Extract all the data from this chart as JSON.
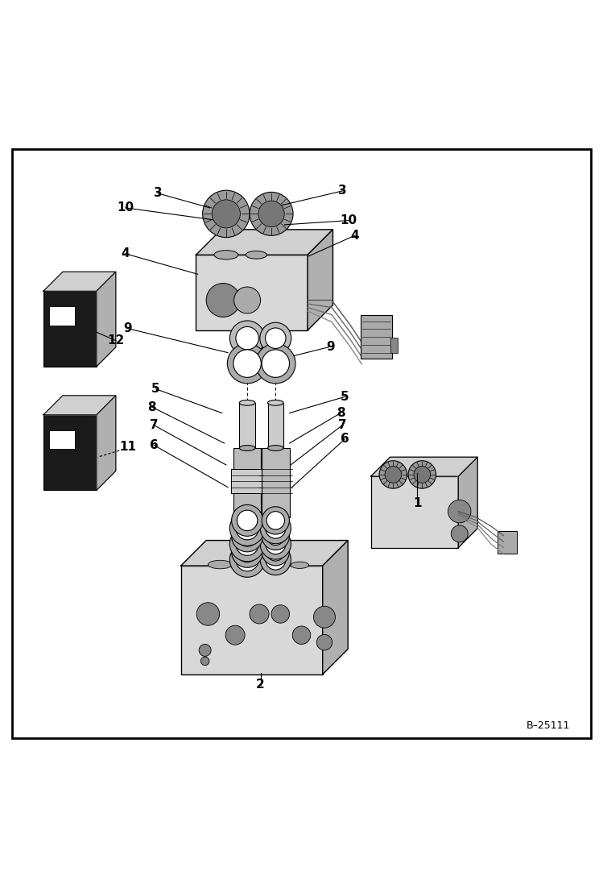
{
  "background_color": "#ffffff",
  "border_color": "#000000",
  "figure_width": 7.49,
  "figure_height": 10.97,
  "dpi": 100,
  "watermark": "B–25111"
}
